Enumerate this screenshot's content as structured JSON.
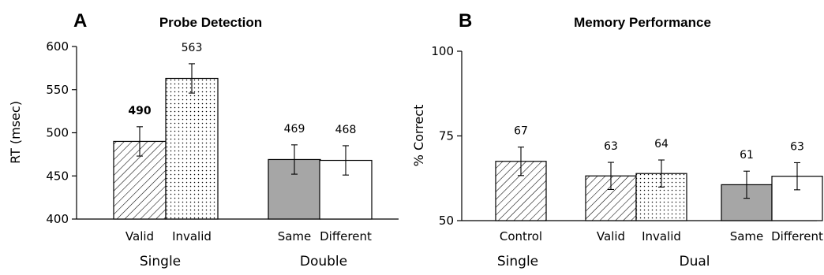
{
  "chart_data": [
    {
      "type": "bar",
      "panel": "A",
      "title": "Probe Detection",
      "ylabel": "RT (msec)",
      "xlabel": "",
      "ylim": [
        400,
        600
      ],
      "yticks": [
        "400",
        "450",
        "500",
        "550",
        "600"
      ],
      "groups": [
        {
          "label": "Single",
          "categories": [
            "Valid",
            "Invalid"
          ]
        },
        {
          "label": "Double",
          "categories": [
            "Same",
            "Different"
          ]
        }
      ],
      "categories": [
        "Valid",
        "Invalid",
        "Same",
        "Different"
      ],
      "values": [
        490,
        563,
        469,
        468
      ],
      "value_labels": [
        "490",
        "563",
        "469",
        "468"
      ],
      "error": [
        17,
        17,
        17,
        17
      ],
      "fills": [
        "hatch",
        "dots",
        "gray",
        "white"
      ]
    },
    {
      "type": "bar",
      "panel": "B",
      "title": "Memory Performance",
      "ylabel": "% Correct",
      "xlabel": "",
      "ylim": [
        50,
        100
      ],
      "yticks": [
        "50",
        "75",
        "100"
      ],
      "groups": [
        {
          "label": "Single",
          "categories": [
            "Control"
          ]
        },
        {
          "label": "Dual",
          "categories": [
            "Valid",
            "Invalid",
            "Same",
            "Different"
          ]
        }
      ],
      "categories": [
        "Control",
        "Valid",
        "Invalid",
        "Same",
        "Different"
      ],
      "values": [
        67.5,
        63.2,
        63.9,
        60.6,
        63.1
      ],
      "value_labels": [
        "67",
        "63",
        "64",
        "61",
        "63"
      ],
      "error": [
        4.2,
        4,
        4,
        4,
        4
      ],
      "fills": [
        "hatch",
        "hatch",
        "dots",
        "gray",
        "white"
      ]
    }
  ],
  "colors": {
    "gray": "#a6a6a6",
    "white": "#ffffff",
    "ink": "#000000"
  }
}
